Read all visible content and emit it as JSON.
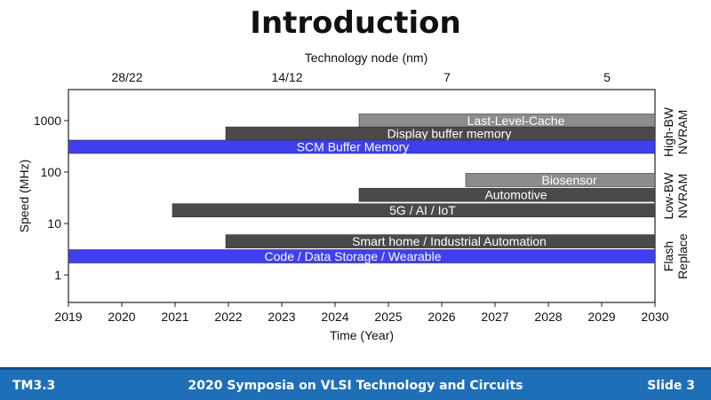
{
  "slide": {
    "title": "Introduction"
  },
  "footer": {
    "session": "TM3.3",
    "conference": "2020 Symposia on VLSI Technology and Circuits",
    "slide_number": "Slide 3"
  },
  "colors": {
    "gray_light": "#8c8c8c",
    "gray_dark": "#4a4a4a",
    "blue": "#3f3ff0",
    "footer": "#1f6fb8"
  },
  "chart_data": {
    "type": "gantt",
    "title": "",
    "xlabel": "Time (Year)",
    "ylabel": "Speed (MHz)",
    "xlim": [
      2019,
      2030
    ],
    "x_ticks": [
      2019,
      2020,
      2021,
      2022,
      2023,
      2024,
      2025,
      2026,
      2027,
      2028,
      2029,
      2030
    ],
    "top_axis": {
      "label": "Technology node (nm)",
      "ticks": [
        {
          "label": "28/22",
          "year": 2020.1
        },
        {
          "label": "14/12",
          "year": 2023.1
        },
        {
          "label": "7",
          "year": 2026.1
        },
        {
          "label": "5",
          "year": 2029.1
        }
      ]
    },
    "yscale": "log",
    "y_ticks": [
      {
        "label": "1000",
        "value": 1000
      },
      {
        "label": "100",
        "value": 100
      },
      {
        "label": "10",
        "value": 10
      },
      {
        "label": "1",
        "value": 1
      }
    ],
    "right_labels": [
      {
        "line1": "High-BW",
        "line2": "NVRAM"
      },
      {
        "line1": "Low-BW",
        "line2": "NVRAM"
      },
      {
        "line1": "Flash",
        "line2": "Replace"
      }
    ],
    "bars": [
      {
        "label": "Last-Level-Cache",
        "start": 2024.45,
        "end": 2030,
        "speed": 1000,
        "color": "gray_light"
      },
      {
        "label": "Display buffer memory",
        "start": 2021.95,
        "end": 2030,
        "speed": 560,
        "color": "gray_dark"
      },
      {
        "label": "SCM Buffer Memory",
        "start": 2019,
        "end": 2030,
        "speed": 310,
        "color": "blue"
      },
      {
        "label": "Biosensor",
        "start": 2026.45,
        "end": 2030,
        "speed": 70,
        "color": "gray_light"
      },
      {
        "label": "Automotive",
        "start": 2024.45,
        "end": 2030,
        "speed": 36,
        "color": "gray_dark"
      },
      {
        "label": "5G / AI / IoT",
        "start": 2020.95,
        "end": 2030,
        "speed": 18,
        "color": "gray_dark"
      },
      {
        "label": "Smart home / Industrial Automation",
        "start": 2021.95,
        "end": 2030,
        "speed": 4.5,
        "color": "gray_dark"
      },
      {
        "label": "Code / Data Storage / Wearable",
        "start": 2019,
        "end": 2030,
        "speed": 2.3,
        "color": "blue"
      }
    ]
  }
}
